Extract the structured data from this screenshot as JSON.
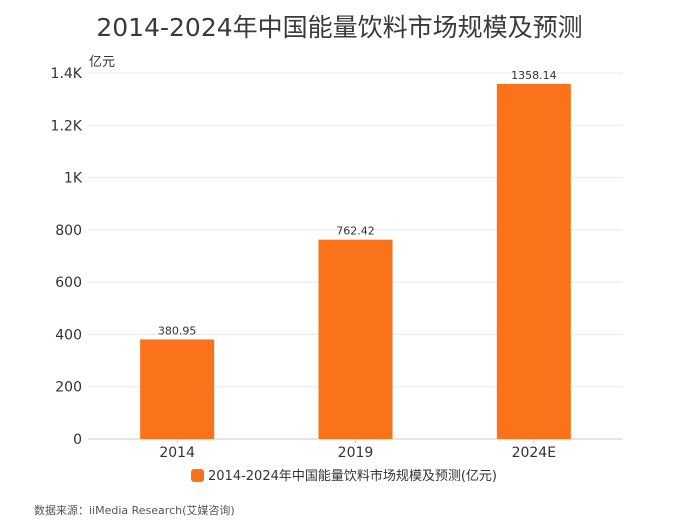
{
  "chart_data": {
    "type": "bar",
    "title": "2014-2024年中国能量饮料市场规模及预测",
    "ylabel": "亿元",
    "xlabel": "",
    "categories": [
      "2014",
      "2019",
      "2024E"
    ],
    "series": [
      {
        "name": "2014-2024年中国能量饮料市场规模及预测(亿元)",
        "values": [
          380.95,
          762.42,
          1358.14
        ],
        "data_labels": [
          "380.95",
          "762.42",
          "1358.14"
        ],
        "color": "#fa7219"
      }
    ],
    "ylim": [
      0,
      1400
    ],
    "yticks": [
      {
        "value": 0,
        "label": "0"
      },
      {
        "value": 200,
        "label": "200"
      },
      {
        "value": 400,
        "label": "400"
      },
      {
        "value": 600,
        "label": "600"
      },
      {
        "value": 800,
        "label": "800"
      },
      {
        "value": 1000,
        "label": "1K"
      },
      {
        "value": 1200,
        "label": "1.2K"
      },
      {
        "value": 1400,
        "label": "1.4K"
      }
    ],
    "grid": true,
    "legend_position": "bottom"
  },
  "source": "数据来源：iiMedia Research(艾媒咨询)",
  "colors": {
    "bar": "#fa7219",
    "grid": "#e8e8e8",
    "axis": "#cccccc"
  }
}
